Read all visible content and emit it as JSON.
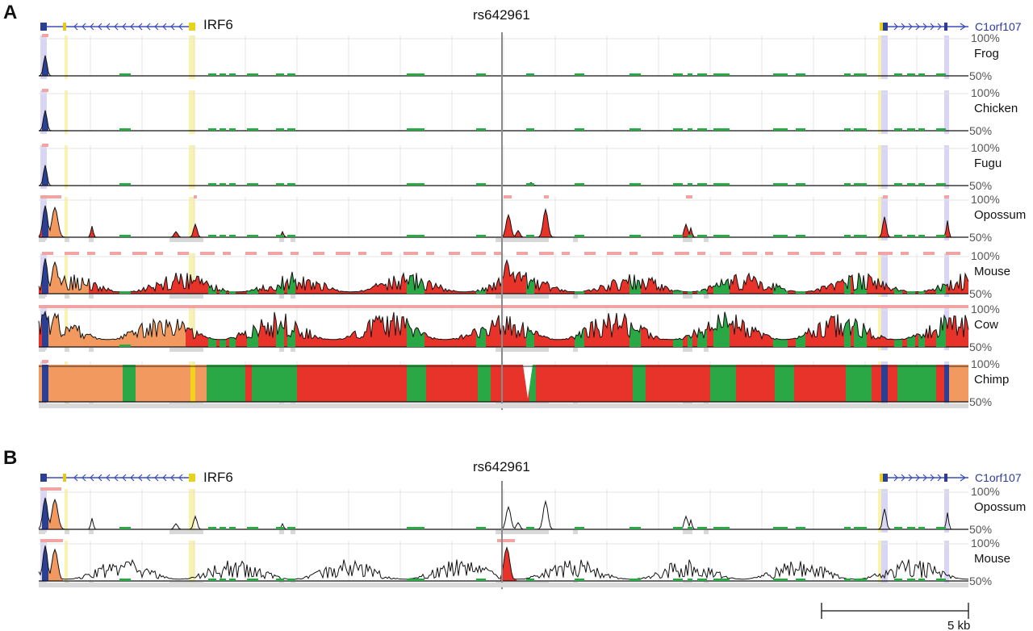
{
  "figure": {
    "panels": [
      {
        "letter": "A",
        "gene_left": "IRF6",
        "gene_right": "C1orf107",
        "snp": "rs642961",
        "tracks": [
          {
            "name": "Frog",
            "top": "100%",
            "bottom": "50%",
            "mode": "sparse"
          },
          {
            "name": "Chicken",
            "top": "100%",
            "bottom": "50%",
            "mode": "sparse"
          },
          {
            "name": "Fugu",
            "top": "100%",
            "bottom": "50%",
            "mode": "sparse"
          },
          {
            "name": "Opossum",
            "top": "100%",
            "bottom": "50%",
            "mode": "opossum"
          },
          {
            "name": "Mouse",
            "top": "100%",
            "bottom": "50%",
            "mode": "mouse"
          },
          {
            "name": "Cow",
            "top": "100%",
            "bottom": "50%",
            "mode": "cow"
          },
          {
            "name": "Chimp",
            "top": "100%",
            "bottom": "50%",
            "mode": "chimp"
          }
        ]
      },
      {
        "letter": "B",
        "gene_left": "IRF6",
        "gene_right": "C1orf107",
        "snp": "rs642961",
        "tracks": [
          {
            "name": "Opossum",
            "top": "100%",
            "bottom": "50%",
            "mode": "opossumB"
          },
          {
            "name": "Mouse",
            "top": "100%",
            "bottom": "50%",
            "mode": "mouseB"
          }
        ]
      }
    ],
    "scale_bar": "5 kb"
  },
  "chart_data": {
    "type": "area",
    "description_of_axes": {
      "x": "genomic position (kb)",
      "y": "conservation %"
    },
    "x_range_kb": [
      0,
      28
    ],
    "y_range": [
      50,
      100
    ],
    "snp_position_kb": 14.0,
    "scale_bar_kb": 5,
    "colors": {
      "coding_exon": "#2b3f93",
      "utr": "#f2995f",
      "cns": "#e8332a",
      "repeat": "#2aa845",
      "gene_line": "#3b4bb8",
      "yellow_highlight": "#f5f08c",
      "purple_highlight": "#c8c4ee",
      "pink_bar": "#f2a3a3",
      "gray_bar": "#d9d9d9",
      "snp_line": "#8a8a8a"
    }
  }
}
